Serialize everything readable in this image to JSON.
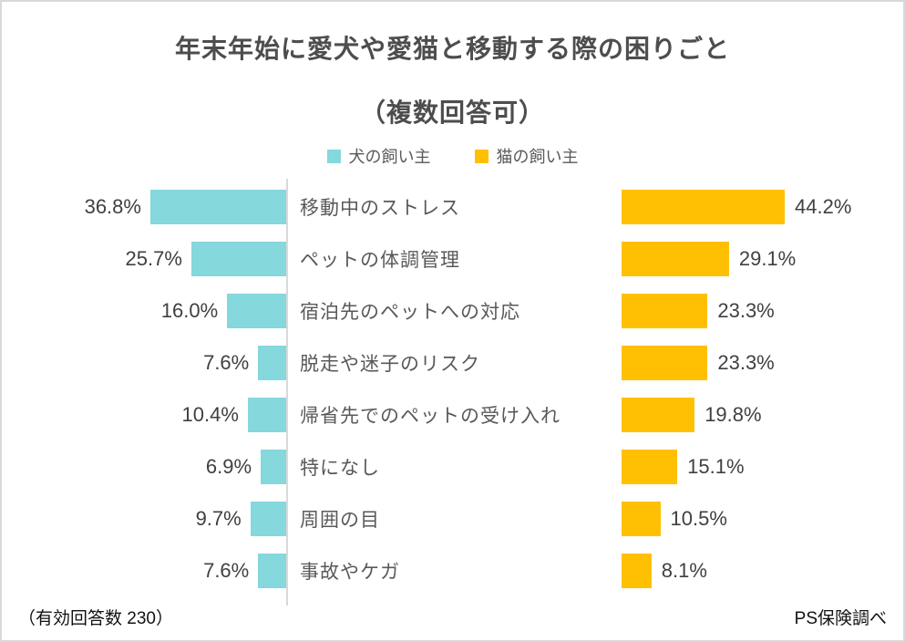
{
  "title": {
    "line1": "年末年始に愛犬や愛猫と移動する際の困りごと",
    "line2": "（複数回答可）"
  },
  "legend": [
    {
      "label": "犬の飼い主",
      "color": "#85d8dc"
    },
    {
      "label": "猫の飼い主",
      "color": "#ffc003"
    }
  ],
  "footer": {
    "left": "（有効回答数 230）",
    "right": "PS保険調べ"
  },
  "chart_data": {
    "type": "bar",
    "orientation": "horizontal-diverging",
    "title": "年末年始に愛犬や愛猫と移動する際の困りごと（複数回答可）",
    "categories": [
      "移動中のストレス",
      "ペットの体調管理",
      "宿泊先のペットへの対応",
      "脱走や迷子のリスク",
      "帰省先でのペットの受け入れ",
      "特になし",
      "周囲の目",
      "事故やケガ"
    ],
    "series": [
      {
        "name": "犬の飼い主",
        "side": "left",
        "color": "#85d8dc",
        "values": [
          36.8,
          25.7,
          16.0,
          7.6,
          10.4,
          6.9,
          9.7,
          7.6
        ]
      },
      {
        "name": "猫の飼い主",
        "side": "right",
        "color": "#ffc003",
        "values": [
          44.2,
          29.1,
          23.3,
          23.3,
          19.8,
          15.1,
          10.5,
          8.1
        ]
      }
    ],
    "value_suffix": "%",
    "value_decimals": 1,
    "xlim": [
      0,
      48
    ],
    "grid": false,
    "legend_position": "top-center",
    "sample_size": 230,
    "source": "PS保険調べ"
  }
}
